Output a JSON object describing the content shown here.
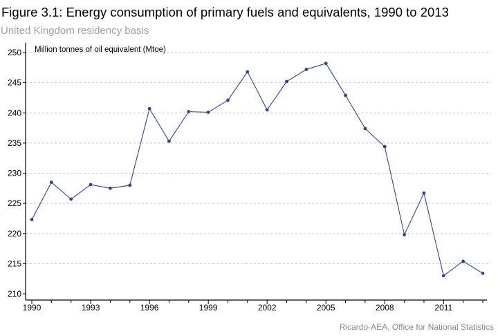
{
  "header": {
    "title": "Figure 3.1: Energy consumption of primary fuels and equivalents, 1990 to 2013",
    "subtitle": "United Kingdom residency basis"
  },
  "footer": {
    "source": "Ricardo-AEA, Office for National Statistics"
  },
  "colors": {
    "series": "#2b4590",
    "grid": "#c8c8c8",
    "axis": "#000000"
  },
  "chart_data": {
    "type": "line",
    "title": "Figure 3.1: Energy consumption of primary fuels and equivalents, 1990 to 2013",
    "subtitle": "United Kingdom residency basis",
    "xlabel": "",
    "ylabel": "Million tonnes of oil equivalent (Mtoe)",
    "x": [
      1990,
      1991,
      1992,
      1993,
      1994,
      1995,
      1996,
      1997,
      1998,
      1999,
      2000,
      2001,
      2002,
      2003,
      2004,
      2005,
      2006,
      2007,
      2008,
      2009,
      2010,
      2011,
      2012,
      2013
    ],
    "series": [
      {
        "values": [
          222.3,
          228.5,
          225.7,
          228.1,
          227.5,
          228.0,
          240.7,
          235.3,
          240.2,
          240.1,
          242.1,
          246.8,
          240.5,
          245.2,
          247.2,
          248.2,
          242.9,
          237.4,
          234.4,
          219.8,
          226.7,
          213.0,
          215.4,
          213.4
        ]
      }
    ],
    "xlim": [
      1990,
      2013
    ],
    "ylim": [
      210,
      250
    ],
    "xticks": [
      "1990",
      "1993",
      "1996",
      "1999",
      "2002",
      "2005",
      "2008",
      "2011"
    ],
    "yticks": [
      "210",
      "215",
      "220",
      "225",
      "230",
      "235",
      "240",
      "245",
      "250"
    ],
    "grid": "horizontal-dashed",
    "markers": true
  }
}
